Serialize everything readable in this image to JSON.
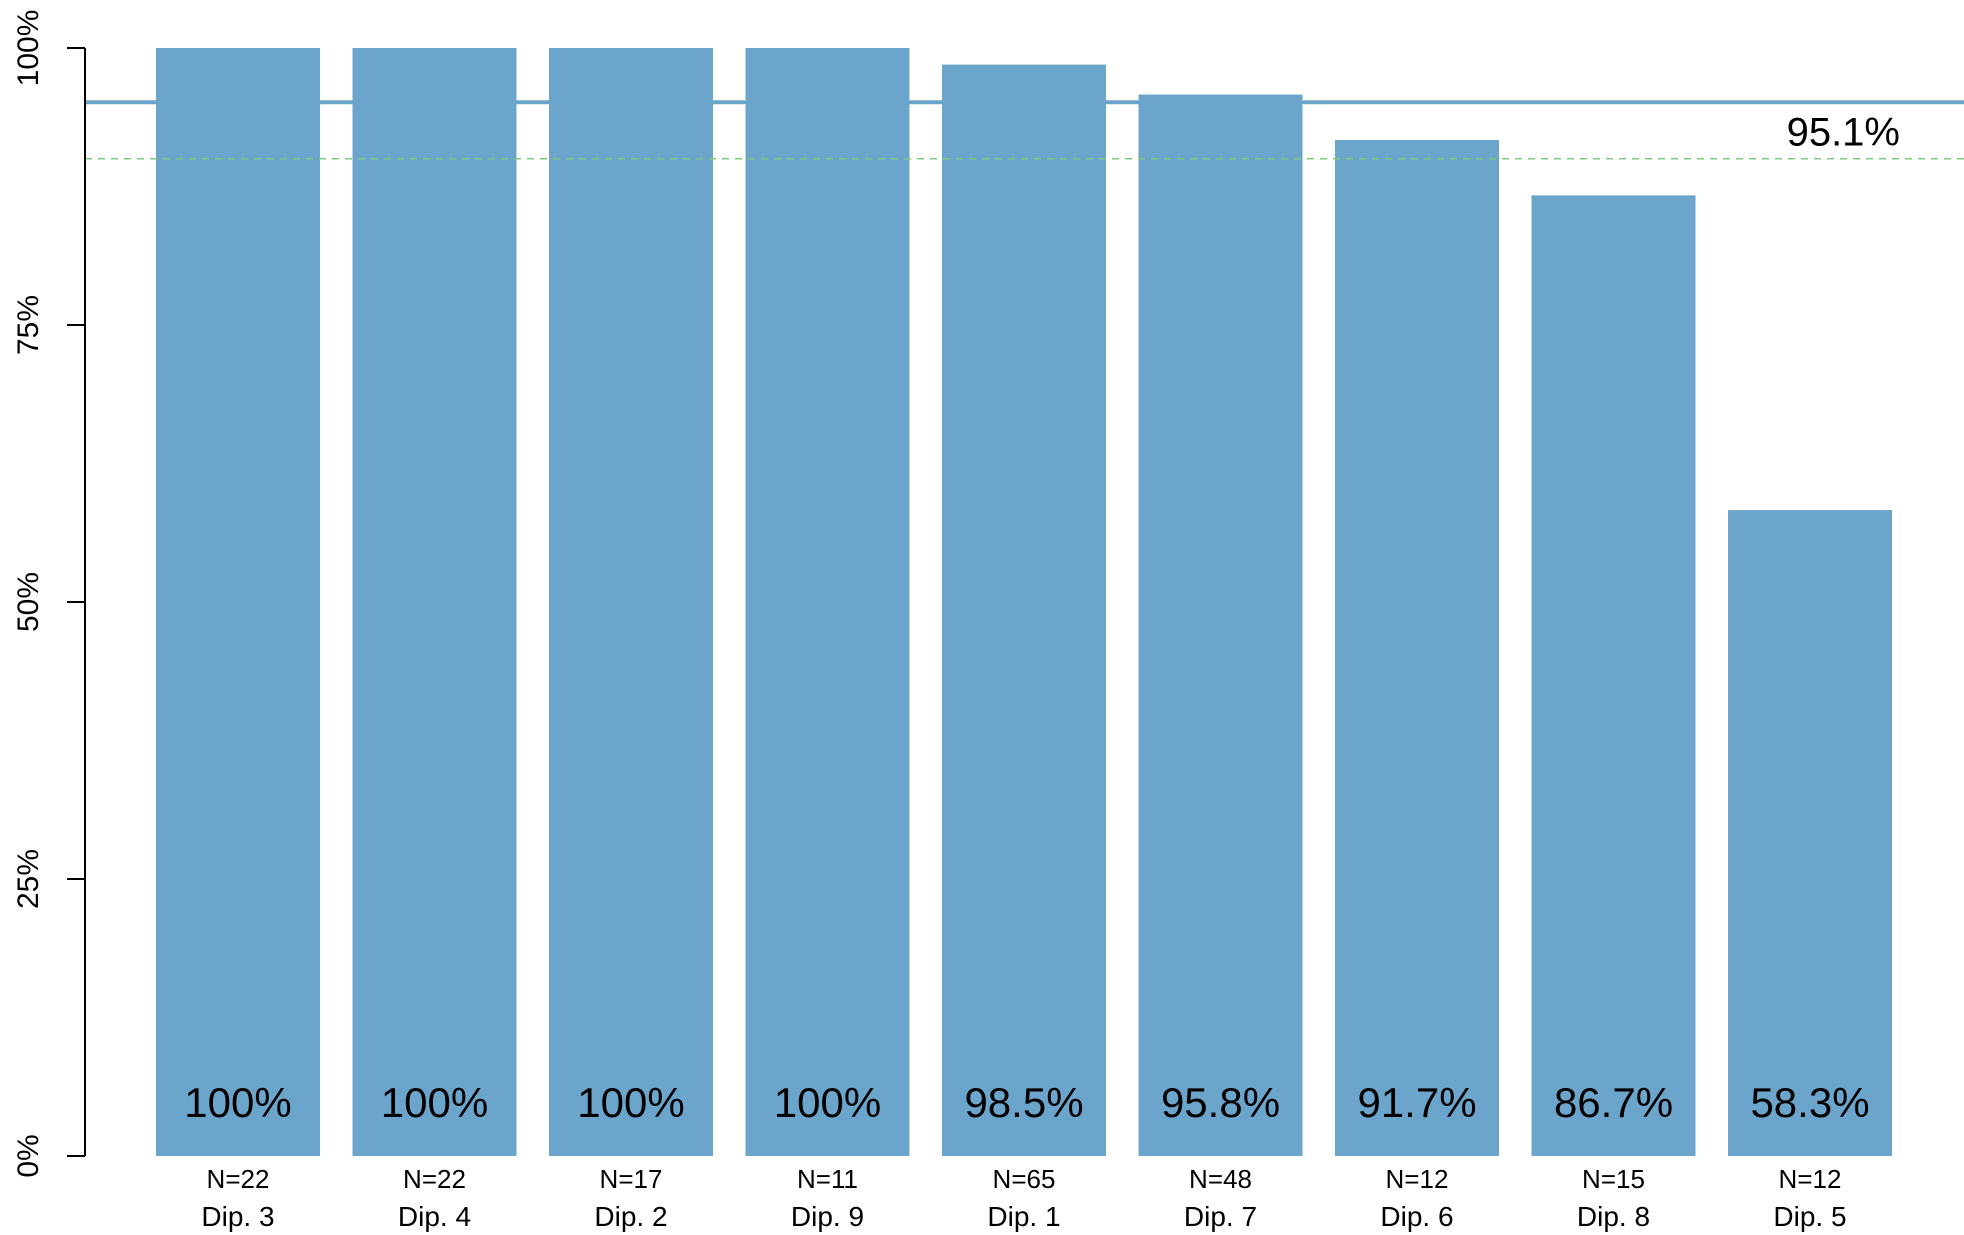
{
  "chart_data": {
    "type": "bar",
    "categories": [
      "Dip. 3",
      "Dip. 4",
      "Dip. 2",
      "Dip. 9",
      "Dip. 1",
      "Dip. 7",
      "Dip. 6",
      "Dip. 8",
      "Dip. 5"
    ],
    "values": [
      100,
      100,
      100,
      100,
      98.5,
      95.8,
      91.7,
      86.7,
      58.3
    ],
    "value_labels": [
      "100%",
      "100%",
      "100%",
      "100%",
      "98.5%",
      "95.8%",
      "91.7%",
      "86.7%",
      "58.3%"
    ],
    "n_labels": [
      "N=22",
      "N=22",
      "N=17",
      "N=11",
      "N=65",
      "N=48",
      "N=12",
      "N=15",
      "N=12"
    ],
    "ylim": [
      0,
      100
    ],
    "yticks": [
      0,
      25,
      50,
      75,
      100
    ],
    "ytick_labels": [
      "0%",
      "25%",
      "50%",
      "75%",
      "100%"
    ],
    "reference_lines": [
      {
        "value": 95.1,
        "label": "95.1%",
        "style": "solid",
        "color": "#6ca5cc"
      },
      {
        "value": 90,
        "label": "",
        "style": "dashed",
        "color": "#7fc97f"
      }
    ],
    "bar_color": "#6ca5cc",
    "grid": false,
    "legend": "none",
    "title": "",
    "xlabel": "",
    "ylabel": ""
  }
}
